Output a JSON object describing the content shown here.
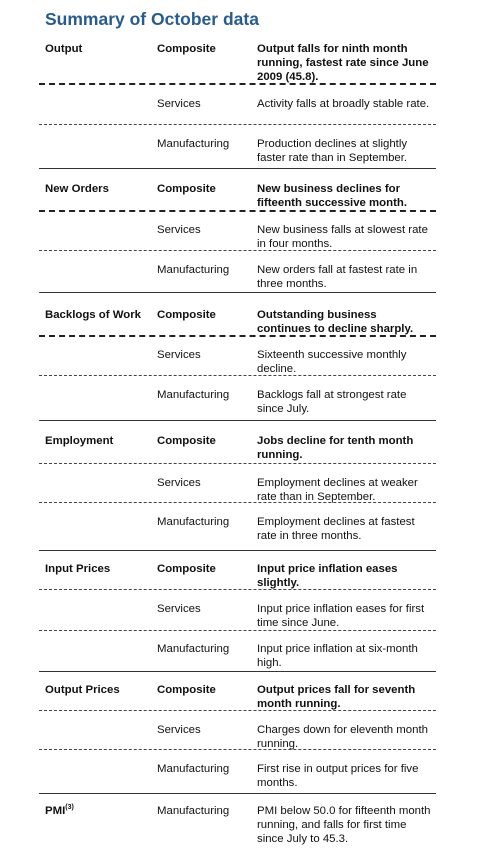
{
  "title": "Summary of October data",
  "groups": [
    {
      "label": "Output",
      "rows": [
        {
          "type": "Composite",
          "text": "Output falls for ninth month running, fastest rate since June 2009 (45.8)."
        },
        {
          "type": "Services",
          "text": "Activity falls at broadly stable rate."
        },
        {
          "type": "Manufacturing",
          "text": "Production declines at slightly faster rate than in September."
        }
      ]
    },
    {
      "label": "New Orders",
      "rows": [
        {
          "type": "Composite",
          "text": "New business declines for fifteenth successive month."
        },
        {
          "type": "Services",
          "text": "New business falls at slowest rate in four months."
        },
        {
          "type": "Manufacturing",
          "text": "New orders fall at fastest rate in three months."
        }
      ]
    },
    {
      "label": "Backlogs of Work",
      "rows": [
        {
          "type": "Composite",
          "text": "Outstanding business continues to decline sharply."
        },
        {
          "type": "Services",
          "text": "Sixteenth successive monthly decline."
        },
        {
          "type": "Manufacturing",
          "text": "Backlogs fall at strongest rate since July."
        }
      ]
    },
    {
      "label": "Employment",
      "rows": [
        {
          "type": "Composite",
          "text": "Jobs decline for tenth month running."
        },
        {
          "type": "Services",
          "text": "Employment declines at weaker rate than in September."
        },
        {
          "type": "Manufacturing",
          "text": "Employment declines at fastest rate in three months."
        }
      ]
    },
    {
      "label": "Input Prices",
      "rows": [
        {
          "type": "Composite",
          "text": "Input price inflation eases slightly."
        },
        {
          "type": "Services",
          "text": "Input price inflation eases for first time since June."
        },
        {
          "type": "Manufacturing",
          "text": "Input price inflation at six-month high."
        }
      ]
    },
    {
      "label": "Output Prices",
      "rows": [
        {
          "type": "Composite",
          "text": "Output prices fall for seventh month running."
        },
        {
          "type": "Services",
          "text": "Charges down for eleventh month running."
        },
        {
          "type": "Manufacturing",
          "text": "First rise in output prices for five months."
        }
      ]
    },
    {
      "label": "PMI",
      "label_sup": "(3)",
      "rows": [
        {
          "type": "Manufacturing",
          "text": "PMI below 50.0 for fifteenth month running, and falls for first time since July to 45.3."
        }
      ]
    }
  ]
}
